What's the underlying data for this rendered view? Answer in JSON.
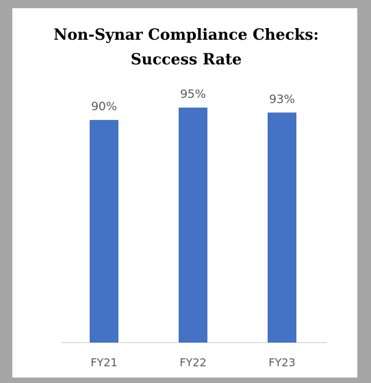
{
  "chart_data": {
    "type": "bar",
    "title": [
      "Non-Synar Compliance Checks:",
      "Success Rate"
    ],
    "categories": [
      "FY21",
      "FY22",
      "FY23"
    ],
    "values": [
      90,
      95,
      93
    ],
    "value_labels": [
      "90%",
      "95%",
      "93%"
    ],
    "color": "#4472c4",
    "ylim": [
      0,
      100
    ]
  }
}
